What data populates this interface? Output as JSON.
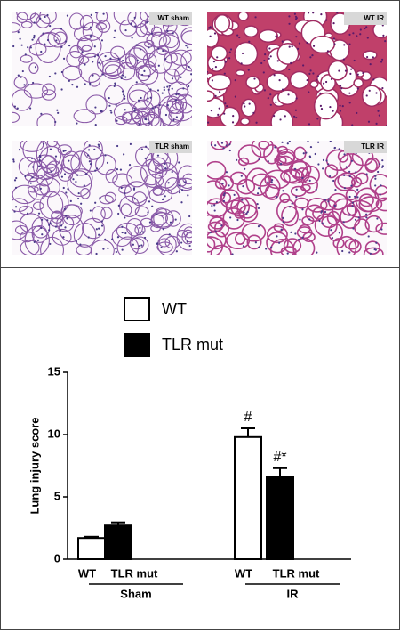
{
  "images": [
    {
      "label": "WT sham"
    },
    {
      "label": "WT IR"
    },
    {
      "label": "TLR sham"
    },
    {
      "label": "TLR IR"
    }
  ],
  "chart_data": {
    "type": "bar",
    "y_label": "Lung injury score",
    "groups": [
      "Sham",
      "IR"
    ],
    "series": [
      {
        "name": "WT",
        "color": "#ffffff",
        "values": [
          1.7,
          9.8
        ],
        "errors": [
          0.1,
          0.7
        ],
        "markers": [
          null,
          "#"
        ]
      },
      {
        "name": "TLR mut",
        "color": "#000000",
        "values": [
          2.7,
          6.6
        ],
        "errors": [
          0.25,
          0.7
        ],
        "markers": [
          null,
          "#*"
        ]
      }
    ],
    "ylim": [
      0,
      15
    ],
    "yticks": [
      0,
      5,
      10,
      15
    ],
    "grid": false
  }
}
